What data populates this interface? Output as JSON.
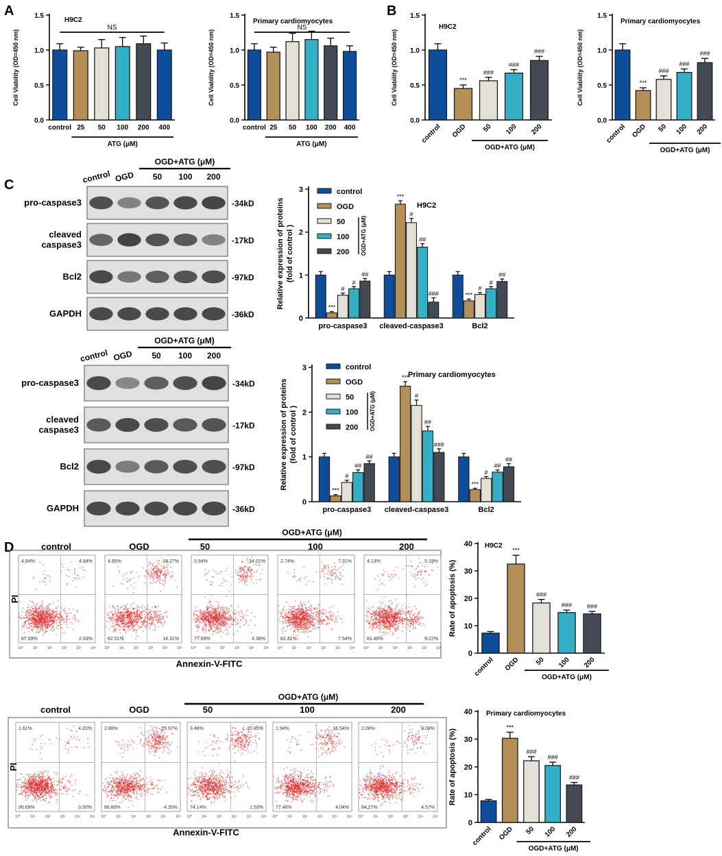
{
  "panel_letters": [
    "A",
    "B",
    "C",
    "D"
  ],
  "colors": {
    "control": "#0e4d9a",
    "ogd": "#b58f58",
    "c50": "#e4e0d5",
    "c100": "#33b0c5",
    "c200": "#434a56",
    "blot_bg": "#e0e0e0",
    "band": "#3a3a3a",
    "flow_dot": "#e02020"
  },
  "common": {
    "atg_um": "ATG (μM)",
    "ogd_atg_um": "OGD+ATG (μM)",
    "ns": "NS",
    "sig3": "***",
    "hash1": "#",
    "hash2": "##",
    "hash3": "###",
    "annexin": "Annexin-V-FITC",
    "pi": "PI"
  },
  "chart_data": [
    {
      "id": "A1",
      "type": "bar",
      "title": "H9C2",
      "ylabel": "Cell Viability (OD=450 nm)",
      "ylim": [
        0,
        1.5
      ],
      "yticks": [
        "0.0",
        "0.5",
        "1.0",
        "1.5"
      ],
      "categories": [
        "control",
        "25",
        "50",
        "100",
        "200",
        "400"
      ],
      "values": [
        1.0,
        0.99,
        1.03,
        1.05,
        1.09,
        1.0
      ],
      "errors": [
        0.09,
        0.05,
        0.12,
        0.13,
        0.11,
        0.1
      ],
      "colors": [
        "control",
        "ogd",
        "c50",
        "c100",
        "c200",
        "control"
      ],
      "annotations": [
        "",
        "",
        "",
        "",
        "",
        ""
      ],
      "group_bracket": {
        "label": "ATG (μM)",
        "from": 1,
        "to": 5
      }
    },
    {
      "id": "A2",
      "type": "bar",
      "title": "Primary cardiomyocytes",
      "ylabel": "Cell Viability (OD=450 nm)",
      "ylim": [
        0,
        1.5
      ],
      "yticks": [
        "0.0",
        "0.5",
        "1.0",
        "1.5"
      ],
      "categories": [
        "control",
        "25",
        "50",
        "100",
        "200",
        "400"
      ],
      "values": [
        1.0,
        0.97,
        1.12,
        1.15,
        1.06,
        0.98
      ],
      "errors": [
        0.09,
        0.07,
        0.12,
        0.12,
        0.11,
        0.08
      ],
      "colors": [
        "control",
        "ogd",
        "c50",
        "c100",
        "c200",
        "control"
      ],
      "annotations": [
        "",
        "",
        "",
        "",
        "",
        ""
      ],
      "group_bracket": {
        "label": "ATG (μM)",
        "from": 1,
        "to": 5
      }
    },
    {
      "id": "B1",
      "type": "bar",
      "title": "H9C2",
      "ylabel": "Cell Viability (OD=450 nm)",
      "ylim": [
        0,
        1.5
      ],
      "yticks": [
        "0.0",
        "0.5",
        "1.0",
        "1.5"
      ],
      "categories": [
        "control",
        "OGD",
        "50",
        "100",
        "200"
      ],
      "values": [
        1.0,
        0.45,
        0.56,
        0.67,
        0.85
      ],
      "errors": [
        0.09,
        0.05,
        0.05,
        0.05,
        0.06
      ],
      "colors": [
        "control",
        "ogd",
        "c50",
        "c100",
        "c200"
      ],
      "annotations": [
        "",
        "***",
        "###",
        "###",
        "###"
      ],
      "group_bracket": {
        "label": "OGD+ATG (μM)",
        "from": 2,
        "to": 4
      }
    },
    {
      "id": "B2",
      "type": "bar",
      "title": "Primary cardiomyocytes",
      "ylabel": "Cell Viability (OD=450 nm)",
      "ylim": [
        0,
        1.5
      ],
      "yticks": [
        "0.0",
        "0.5",
        "1.0",
        "1.5"
      ],
      "categories": [
        "control",
        "OGD",
        "50",
        "100",
        "200"
      ],
      "values": [
        1.0,
        0.42,
        0.58,
        0.68,
        0.82
      ],
      "errors": [
        0.09,
        0.04,
        0.05,
        0.05,
        0.06
      ],
      "colors": [
        "control",
        "ogd",
        "c50",
        "c100",
        "c200"
      ],
      "annotations": [
        "",
        "***",
        "###",
        "###",
        "###"
      ],
      "group_bracket": {
        "label": "OGD+ATG (μM)",
        "from": 2,
        "to": 4
      }
    },
    {
      "id": "C1",
      "type": "grouped-bar",
      "title": "H9C2",
      "ylabel": "Relative expression of proteins (fold of control )",
      "ylim": [
        0,
        3
      ],
      "yticks": [
        "0",
        "1",
        "2",
        "3"
      ],
      "categories": [
        "pro-caspase3",
        "cleaved-caspase3",
        "Bcl2"
      ],
      "legend_title": "OGD+ATG (μM)",
      "series": [
        {
          "name": "control",
          "color": "control",
          "values": [
            1.0,
            1.0,
            1.0
          ],
          "errors": [
            0.08,
            0.08,
            0.08
          ],
          "annotations": [
            "",
            "",
            ""
          ]
        },
        {
          "name": "OGD",
          "color": "ogd",
          "values": [
            0.12,
            2.65,
            0.4
          ],
          "errors": [
            0.03,
            0.08,
            0.04
          ],
          "annotations": [
            "***",
            "***",
            "***"
          ]
        },
        {
          "name": "50",
          "color": "c50",
          "values": [
            0.53,
            2.22,
            0.55
          ],
          "errors": [
            0.05,
            0.1,
            0.04
          ],
          "annotations": [
            "#",
            "#",
            "#"
          ]
        },
        {
          "name": "100",
          "color": "c100",
          "values": [
            0.68,
            1.65,
            0.68
          ],
          "errors": [
            0.05,
            0.08,
            0.05
          ],
          "annotations": [
            "#",
            "##",
            "#"
          ]
        },
        {
          "name": "200",
          "color": "c200",
          "values": [
            0.86,
            0.37,
            0.85
          ],
          "errors": [
            0.06,
            0.1,
            0.06
          ],
          "annotations": [
            "##",
            "###",
            "##"
          ]
        }
      ]
    },
    {
      "id": "C2",
      "type": "grouped-bar",
      "title": "Primary cardiomyocytes",
      "ylabel": "Relative expression of proteins (fold of control )",
      "ylim": [
        0,
        3
      ],
      "yticks": [
        "0",
        "1",
        "2",
        "3"
      ],
      "categories": [
        "pro-caspase3",
        "cleaved-caspase3",
        "Bcl2"
      ],
      "legend_title": "OGD+ATG (μM)",
      "series": [
        {
          "name": "control",
          "color": "control",
          "values": [
            1.0,
            1.0,
            1.0
          ],
          "errors": [
            0.08,
            0.08,
            0.08
          ],
          "annotations": [
            "",
            "",
            ""
          ]
        },
        {
          "name": "OGD",
          "color": "ogd",
          "values": [
            0.13,
            2.58,
            0.27
          ],
          "errors": [
            0.03,
            0.1,
            0.03
          ],
          "annotations": [
            "***",
            "***",
            "***"
          ]
        },
        {
          "name": "50",
          "color": "c50",
          "values": [
            0.43,
            2.15,
            0.52
          ],
          "errors": [
            0.05,
            0.12,
            0.04
          ],
          "annotations": [
            "#",
            "#",
            "#"
          ]
        },
        {
          "name": "100",
          "color": "c100",
          "values": [
            0.65,
            1.58,
            0.66
          ],
          "errors": [
            0.06,
            0.1,
            0.05
          ],
          "annotations": [
            "##",
            "##",
            "##"
          ]
        },
        {
          "name": "200",
          "color": "c200",
          "values": [
            0.85,
            1.1,
            0.78
          ],
          "errors": [
            0.06,
            0.08,
            0.07
          ],
          "annotations": [
            "##",
            "###",
            "##"
          ]
        }
      ]
    },
    {
      "id": "D1",
      "type": "bar",
      "title": "H9C2",
      "ylabel": "Rate of apoptosis (%)",
      "ylim": [
        0,
        40
      ],
      "yticks": [
        "0",
        "10",
        "20",
        "30",
        "40"
      ],
      "categories": [
        "control",
        "OGD",
        "50",
        "100",
        "200"
      ],
      "values": [
        7.3,
        32.5,
        18.3,
        14.8,
        14.3
      ],
      "errors": [
        0.6,
        3.2,
        1.3,
        0.9,
        0.9
      ],
      "colors": [
        "control",
        "ogd",
        "c50",
        "c100",
        "c200"
      ],
      "annotations": [
        "",
        "***",
        "###",
        "###",
        "###"
      ],
      "group_bracket": {
        "label": "OGD+ATG (μM)",
        "from": 2,
        "to": 4
      }
    },
    {
      "id": "D2",
      "type": "bar",
      "title": "Primary cardiomyocytes",
      "ylabel": "Rate of apoptosis (%)",
      "ylim": [
        0,
        40
      ],
      "yticks": [
        "0",
        "10",
        "20",
        "30",
        "40"
      ],
      "categories": [
        "control",
        "OGD",
        "50",
        "100",
        "200"
      ],
      "values": [
        7.8,
        30.3,
        22.2,
        20.5,
        13.5
      ],
      "errors": [
        0.5,
        2.2,
        1.5,
        1.2,
        0.9
      ],
      "colors": [
        "control",
        "ogd",
        "c50",
        "c100",
        "c200"
      ],
      "annotations": [
        "",
        "***",
        "###",
        "###",
        "###"
      ],
      "group_bracket": {
        "label": "OGD+ATG (μM)",
        "from": 2,
        "to": 4
      }
    }
  ],
  "blots": [
    {
      "id": "blot1",
      "lanes": [
        "control",
        "OGD",
        "50",
        "100",
        "200"
      ],
      "group_label": "OGD+ATG (μM)",
      "rows": [
        {
          "protein": "pro-caspase3",
          "size": "-34kD",
          "intensity": [
            0.9,
            0.45,
            0.85,
            0.95,
            0.98
          ]
        },
        {
          "protein": "cleaved\ncaspase3",
          "size": "-17kD",
          "intensity": [
            0.7,
            1.0,
            0.85,
            0.8,
            0.45
          ]
        },
        {
          "protein": "Bcl2",
          "size": "-97kD",
          "intensity": [
            0.95,
            0.55,
            0.75,
            0.85,
            0.9
          ]
        },
        {
          "protein": "GAPDH",
          "size": "-36kD",
          "intensity": [
            0.95,
            0.95,
            0.95,
            0.95,
            0.95
          ]
        }
      ]
    },
    {
      "id": "blot2",
      "lanes": [
        "control",
        "OGD",
        "50",
        "100",
        "200"
      ],
      "group_label": "OGD+ATG (μM)",
      "rows": [
        {
          "protein": "pro-caspase3",
          "size": "-34kD",
          "intensity": [
            0.95,
            0.4,
            0.75,
            0.9,
            0.98
          ]
        },
        {
          "protein": "cleaved\ncaspase3",
          "size": "-17kD",
          "intensity": [
            0.8,
            0.95,
            0.9,
            0.8,
            0.85
          ]
        },
        {
          "protein": "Bcl2",
          "size": "-97kD",
          "intensity": [
            0.95,
            0.5,
            0.8,
            0.9,
            0.9
          ]
        },
        {
          "protein": "GAPDH",
          "size": "-36kD",
          "intensity": [
            0.95,
            0.95,
            0.95,
            0.95,
            0.95
          ]
        }
      ]
    }
  ],
  "flow": [
    {
      "id": "flow1",
      "group_label": "OGD+ATG (μM)",
      "xlabel": "Annexin-V-FITC",
      "ylabel": "PI",
      "panels": [
        {
          "label": "control",
          "q": [
            "4.84%",
            "4.84%",
            "87.69%",
            "2.63%"
          ],
          "weights": [
            0.02,
            0.03,
            0.9,
            0.05
          ]
        },
        {
          "label": "OGD",
          "q": [
            "4.85%",
            "18.27%",
            "62.51%",
            "14.31%"
          ],
          "weights": [
            0.03,
            0.2,
            0.62,
            0.15
          ]
        },
        {
          "label": "50",
          "q": [
            "3.94%",
            "14.01%",
            "77.69%",
            "4.36%"
          ],
          "weights": [
            0.03,
            0.15,
            0.77,
            0.05
          ]
        },
        {
          "label": "100",
          "q": [
            "2.74%",
            "7.31%",
            "82.41%",
            "7.54%"
          ],
          "weights": [
            0.02,
            0.08,
            0.82,
            0.08
          ]
        },
        {
          "label": "200",
          "q": [
            "4.13%",
            "5.19%",
            "81.46%",
            "9.22%"
          ],
          "weights": [
            0.03,
            0.06,
            0.8,
            0.11
          ]
        }
      ]
    },
    {
      "id": "flow2",
      "group_label": "OGD+ATG (μM)",
      "xlabel": "Annexin-V-FITC",
      "ylabel": "PI",
      "panels": [
        {
          "label": "control",
          "q": [
            "1.61%",
            "4.20%",
            "90.69%",
            "3.50%"
          ],
          "weights": [
            0.02,
            0.04,
            0.9,
            0.04
          ]
        },
        {
          "label": "OGD",
          "q": [
            "2.88%",
            "25.97%",
            "66.80%",
            "4.35%"
          ],
          "weights": [
            0.03,
            0.27,
            0.65,
            0.05
          ]
        },
        {
          "label": "50",
          "q": [
            "3.48%",
            "20.85%",
            "74.14%",
            "1.53%"
          ],
          "weights": [
            0.03,
            0.22,
            0.73,
            0.02
          ]
        },
        {
          "label": "100",
          "q": [
            "1.94%",
            "16.54%",
            "77.48%",
            "4.04%"
          ],
          "weights": [
            0.02,
            0.17,
            0.77,
            0.04
          ]
        },
        {
          "label": "200",
          "q": [
            "2.08%",
            "9.08%",
            "84.27%",
            "4.57%"
          ],
          "weights": [
            0.02,
            0.09,
            0.84,
            0.05
          ]
        }
      ]
    }
  ],
  "flow_axis_ticks": [
    "10⁰",
    "10¹",
    "10²",
    "10³",
    "10⁴",
    "10⁵"
  ]
}
